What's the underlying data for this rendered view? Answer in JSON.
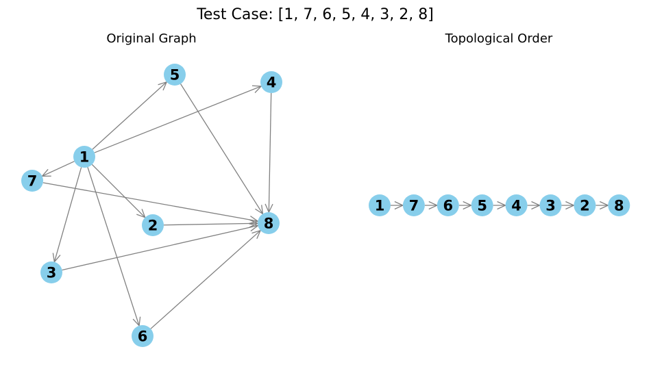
{
  "figure": {
    "title": "Test Case: [1, 7, 6, 5, 4, 3, 2, 8]"
  },
  "colors": {
    "node_fill": "#87ceeb",
    "edge": "#808080",
    "text": "#000000"
  },
  "original_graph": {
    "title": "Original Graph",
    "nodes": [
      "1",
      "2",
      "3",
      "4",
      "5",
      "6",
      "7",
      "8"
    ],
    "edges": [
      [
        "1",
        "5"
      ],
      [
        "1",
        "4"
      ],
      [
        "1",
        "7"
      ],
      [
        "1",
        "2"
      ],
      [
        "1",
        "3"
      ],
      [
        "1",
        "6"
      ],
      [
        "5",
        "8"
      ],
      [
        "4",
        "8"
      ],
      [
        "7",
        "8"
      ],
      [
        "2",
        "8"
      ],
      [
        "3",
        "8"
      ],
      [
        "6",
        "8"
      ]
    ]
  },
  "topological_order": {
    "title": "Topological Order",
    "order": [
      "1",
      "7",
      "6",
      "5",
      "4",
      "3",
      "2",
      "8"
    ]
  }
}
